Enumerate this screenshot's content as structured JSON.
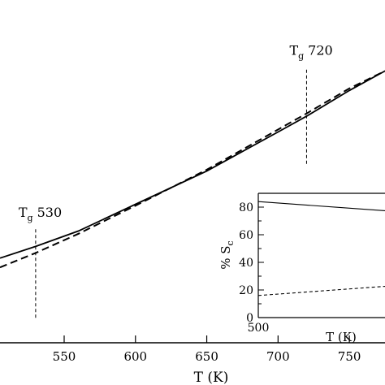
{
  "chart_data": [
    {
      "type": "line",
      "xlabel": "T (K)",
      "ylabel": "",
      "xlim": [
        505,
        775
      ],
      "ylim": [
        0,
        1
      ],
      "x_ticks": [
        550,
        600,
        650,
        700,
        750
      ],
      "x_tick_labels": [
        "550",
        "600",
        "650",
        "700",
        "750"
      ],
      "series": [
        {
          "style": "solid",
          "x": [
            505,
            530,
            560,
            600,
            650,
            700,
            720,
            750,
            775
          ],
          "y": [
            0.247,
            0.281,
            0.326,
            0.404,
            0.501,
            0.615,
            0.661,
            0.736,
            0.793
          ]
        },
        {
          "style": "dashed",
          "x": [
            505,
            530,
            560,
            600,
            650,
            700,
            720,
            750,
            775
          ],
          "y": [
            0.22,
            0.262,
            0.318,
            0.4,
            0.505,
            0.622,
            0.669,
            0.742,
            0.793
          ]
        }
      ],
      "annotations": [
        {
          "T": "T",
          "sub": "g",
          "value": "530",
          "x": 530,
          "line_y": [
            0.073,
            0.332
          ]
        },
        {
          "T": "T",
          "sub": "g",
          "value": "720",
          "x": 720,
          "line_y": [
            0.522,
            0.804
          ]
        }
      ],
      "grid": false,
      "colors": {
        "line": "#000000",
        "axis": "#000000",
        "background": "#ffffff"
      }
    },
    {
      "type": "line",
      "xlabel": "T (K)",
      "ylabel": "% S",
      "ylabel_sub": "c",
      "xlim": [
        500,
        575
      ],
      "ylim": [
        0,
        90
      ],
      "x_ticks": [
        500
      ],
      "x_tick_labels": [
        "500"
      ],
      "y_ticks": [
        0,
        20,
        40,
        60,
        80
      ],
      "y_tick_labels": [
        "0",
        "20",
        "40",
        "60",
        "80"
      ],
      "series": [
        {
          "style": "solid",
          "x": [
            500,
            575
          ],
          "y": [
            84,
            77
          ]
        },
        {
          "style": "dashed",
          "x": [
            500,
            575
          ],
          "y": [
            16,
            23
          ]
        }
      ],
      "grid": false
    }
  ]
}
